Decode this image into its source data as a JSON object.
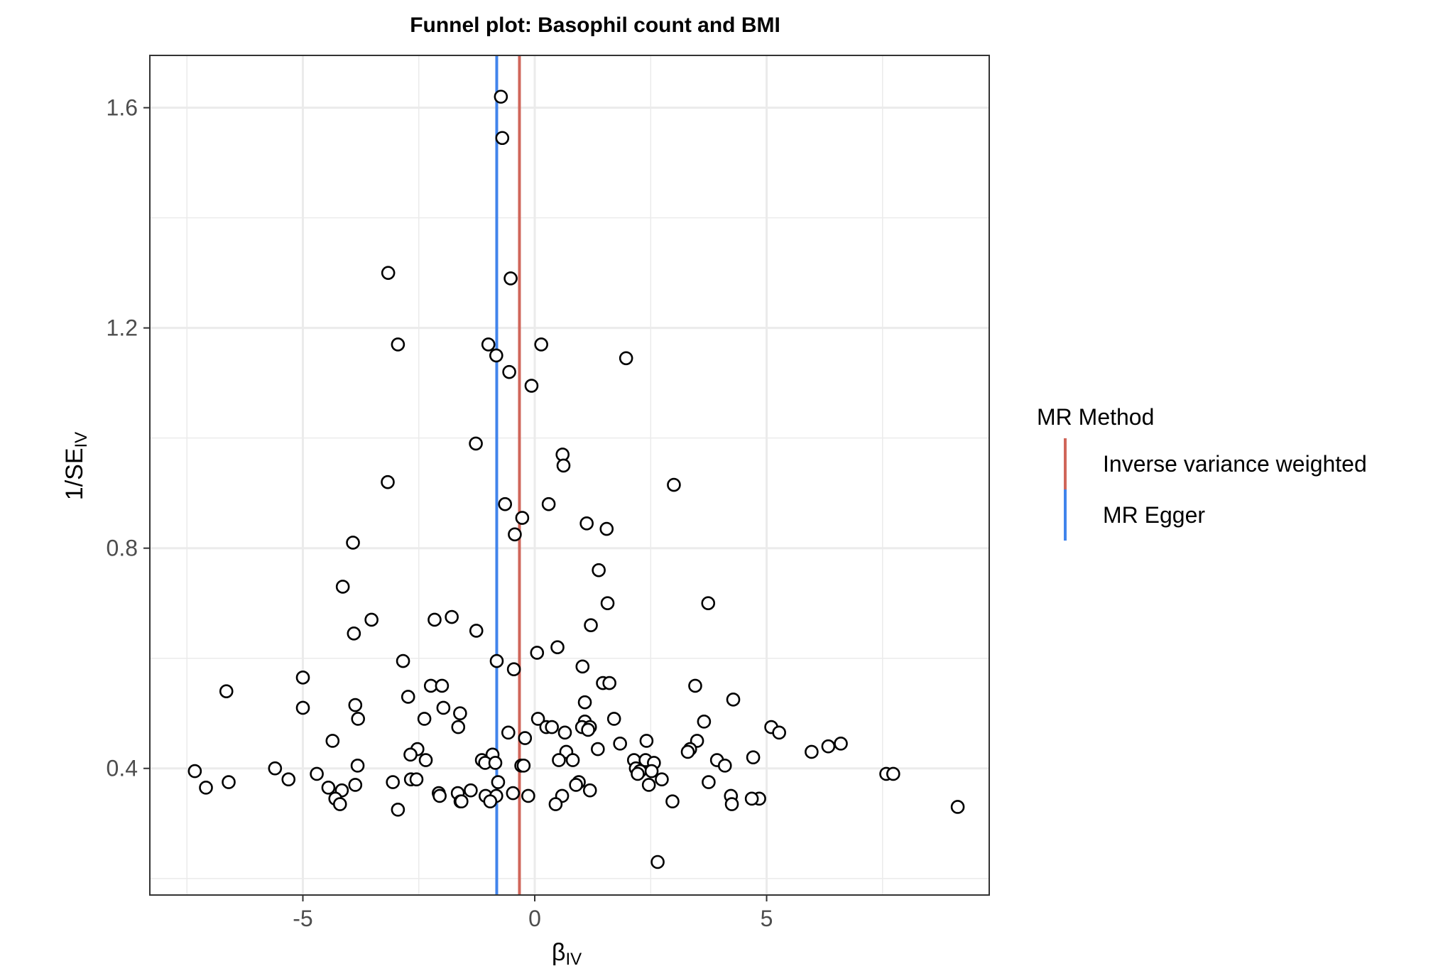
{
  "chart_data": {
    "type": "scatter",
    "title": "Funnel plot: Basophil count and BMI",
    "xlabel_main": "β",
    "xlabel_sub": "IV",
    "ylabel_main": "1/SE",
    "ylabel_sub": "IV",
    "xlim": [
      -8.3,
      9.8
    ],
    "ylim": [
      0.17,
      1.695
    ],
    "x_ticks": [
      {
        "value": -5,
        "label": "-5"
      },
      {
        "value": 0,
        "label": "0"
      },
      {
        "value": 5,
        "label": "5"
      }
    ],
    "y_ticks": [
      {
        "value": 0.4,
        "label": "0.4"
      },
      {
        "value": 0.8,
        "label": "0.8"
      },
      {
        "value": 1.2,
        "label": "1.2"
      },
      {
        "value": 1.6,
        "label": "1.6"
      }
    ],
    "x_minor": [
      -7.5,
      -2.5,
      2.5,
      7.5
    ],
    "y_minor": [
      0.2,
      0.6,
      1.0,
      1.4
    ],
    "grid": true,
    "legend": {
      "title": "MR Method",
      "position": "right",
      "items": [
        {
          "label": "Inverse variance weighted",
          "color": "#d0665a"
        },
        {
          "label": "MR Egger",
          "color": "#4184ec"
        }
      ]
    },
    "vlines": [
      {
        "method": "Inverse variance weighted",
        "x": -0.33,
        "color": "#d0665a"
      },
      {
        "method": "MR Egger",
        "x": -0.82,
        "color": "#4184ec"
      }
    ],
    "points": [
      [
        -0.73,
        1.62
      ],
      [
        -0.7,
        1.545
      ],
      [
        -3.16,
        1.3
      ],
      [
        -0.52,
        1.29
      ],
      [
        -2.95,
        1.17
      ],
      [
        -1.0,
        1.17
      ],
      [
        0.14,
        1.17
      ],
      [
        -0.83,
        1.15
      ],
      [
        1.97,
        1.145
      ],
      [
        -0.55,
        1.12
      ],
      [
        -0.07,
        1.095
      ],
      [
        -1.27,
        0.99
      ],
      [
        0.6,
        0.97
      ],
      [
        0.62,
        0.95
      ],
      [
        -3.17,
        0.92
      ],
      [
        3.0,
        0.915
      ],
      [
        -0.64,
        0.88
      ],
      [
        0.3,
        0.88
      ],
      [
        -0.27,
        0.855
      ],
      [
        1.12,
        0.845
      ],
      [
        1.55,
        0.835
      ],
      [
        -0.43,
        0.825
      ],
      [
        -3.92,
        0.81
      ],
      [
        1.38,
        0.76
      ],
      [
        -4.14,
        0.73
      ],
      [
        3.74,
        0.7
      ],
      [
        1.57,
        0.7
      ],
      [
        -3.52,
        0.67
      ],
      [
        -2.16,
        0.67
      ],
      [
        -1.79,
        0.675
      ],
      [
        1.21,
        0.66
      ],
      [
        -1.26,
        0.65
      ],
      [
        -3.9,
        0.645
      ],
      [
        0.49,
        0.62
      ],
      [
        0.05,
        0.61
      ],
      [
        -2.84,
        0.595
      ],
      [
        -0.82,
        0.595
      ],
      [
        1.03,
        0.585
      ],
      [
        -0.45,
        0.58
      ],
      [
        -5.0,
        0.565
      ],
      [
        -2.24,
        0.55
      ],
      [
        -2.0,
        0.55
      ],
      [
        1.47,
        0.555
      ],
      [
        1.61,
        0.555
      ],
      [
        3.46,
        0.55
      ],
      [
        -6.65,
        0.54
      ],
      [
        -2.73,
        0.53
      ],
      [
        4.28,
        0.525
      ],
      [
        -5.0,
        0.51
      ],
      [
        -3.87,
        0.515
      ],
      [
        1.08,
        0.52
      ],
      [
        -1.97,
        0.51
      ],
      [
        -1.61,
        0.5
      ],
      [
        -3.81,
        0.49
      ],
      [
        -2.38,
        0.49
      ],
      [
        0.07,
        0.49
      ],
      [
        1.71,
        0.49
      ],
      [
        3.65,
        0.485
      ],
      [
        1.08,
        0.485
      ],
      [
        -1.65,
        0.475
      ],
      [
        0.25,
        0.475
      ],
      [
        0.37,
        0.475
      ],
      [
        1.02,
        0.475
      ],
      [
        1.19,
        0.475
      ],
      [
        5.1,
        0.475
      ],
      [
        -0.57,
        0.465
      ],
      [
        0.65,
        0.465
      ],
      [
        1.15,
        0.47
      ],
      [
        5.27,
        0.465
      ],
      [
        -0.21,
        0.455
      ],
      [
        -4.36,
        0.45
      ],
      [
        2.41,
        0.45
      ],
      [
        3.5,
        0.45
      ],
      [
        1.84,
        0.445
      ],
      [
        6.6,
        0.445
      ],
      [
        6.33,
        0.44
      ],
      [
        -2.53,
        0.435
      ],
      [
        1.36,
        0.435
      ],
      [
        3.35,
        0.435
      ],
      [
        3.3,
        0.43
      ],
      [
        0.68,
        0.43
      ],
      [
        5.97,
        0.43
      ],
      [
        -2.68,
        0.425
      ],
      [
        -0.91,
        0.425
      ],
      [
        4.71,
        0.42
      ],
      [
        -2.35,
        0.415
      ],
      [
        -1.14,
        0.415
      ],
      [
        0.52,
        0.415
      ],
      [
        0.82,
        0.415
      ],
      [
        2.14,
        0.415
      ],
      [
        2.39,
        0.415
      ],
      [
        3.93,
        0.415
      ],
      [
        -1.07,
        0.41
      ],
      [
        -0.85,
        0.41
      ],
      [
        2.57,
        0.41
      ],
      [
        -3.82,
        0.405
      ],
      [
        -0.29,
        0.405
      ],
      [
        -0.24,
        0.405
      ],
      [
        4.1,
        0.405
      ],
      [
        2.18,
        0.4
      ],
      [
        -7.33,
        0.395
      ],
      [
        -5.6,
        0.4
      ],
      [
        2.27,
        0.395
      ],
      [
        2.52,
        0.395
      ],
      [
        2.22,
        0.39
      ],
      [
        -4.7,
        0.39
      ],
      [
        7.58,
        0.39
      ],
      [
        7.73,
        0.39
      ],
      [
        -5.31,
        0.38
      ],
      [
        -2.67,
        0.38
      ],
      [
        -2.55,
        0.38
      ],
      [
        2.74,
        0.38
      ],
      [
        3.75,
        0.375
      ],
      [
        -6.6,
        0.375
      ],
      [
        -3.06,
        0.375
      ],
      [
        -0.79,
        0.375
      ],
      [
        0.95,
        0.375
      ],
      [
        0.89,
        0.37
      ],
      [
        -3.87,
        0.37
      ],
      [
        2.46,
        0.37
      ],
      [
        -7.09,
        0.365
      ],
      [
        -4.45,
        0.365
      ],
      [
        -4.16,
        0.36
      ],
      [
        1.19,
        0.36
      ],
      [
        -1.38,
        0.36
      ],
      [
        -2.07,
        0.355
      ],
      [
        -1.66,
        0.355
      ],
      [
        -1.06,
        0.35
      ],
      [
        -0.47,
        0.355
      ],
      [
        -2.05,
        0.35
      ],
      [
        -0.83,
        0.35
      ],
      [
        -0.14,
        0.35
      ],
      [
        0.59,
        0.35
      ],
      [
        4.23,
        0.35
      ],
      [
        4.84,
        0.345
      ],
      [
        -4.3,
        0.345
      ],
      [
        4.68,
        0.345
      ],
      [
        -1.6,
        0.34
      ],
      [
        -1.58,
        0.34
      ],
      [
        -0.96,
        0.34
      ],
      [
        2.97,
        0.34
      ],
      [
        -4.2,
        0.335
      ],
      [
        0.45,
        0.335
      ],
      [
        4.25,
        0.335
      ],
      [
        9.12,
        0.33
      ],
      [
        -2.95,
        0.325
      ],
      [
        2.65,
        0.23
      ]
    ]
  }
}
